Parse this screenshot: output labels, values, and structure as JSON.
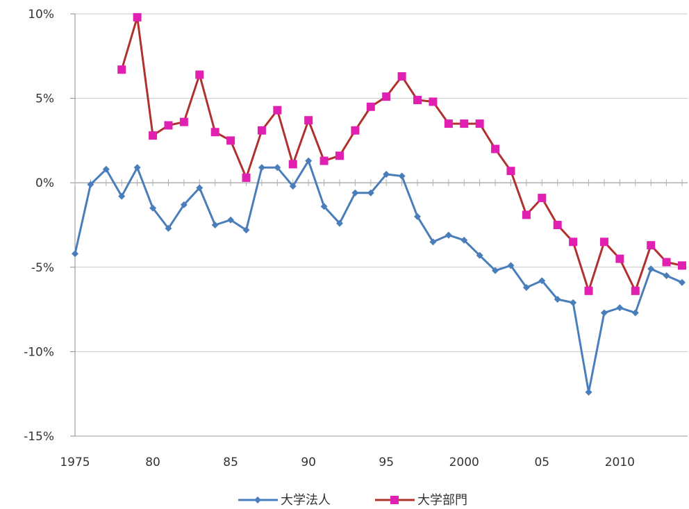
{
  "chart_data": {
    "type": "line",
    "title": "",
    "xlabel": "",
    "ylabel": "",
    "x": [
      1975,
      1976,
      1977,
      1978,
      1979,
      1980,
      1981,
      1982,
      1983,
      1984,
      1985,
      1986,
      1987,
      1988,
      1989,
      1990,
      1991,
      1992,
      1993,
      1994,
      1995,
      1996,
      1997,
      1998,
      1999,
      2000,
      2001,
      2002,
      2003,
      2004,
      2005,
      2006,
      2007,
      2008,
      2009,
      2010,
      2011,
      2012,
      2013,
      2014
    ],
    "xlim": [
      1975,
      2014
    ],
    "ylim": [
      -15,
      10
    ],
    "y_ticks": [
      {
        "value": 10,
        "label": "10%"
      },
      {
        "value": 5,
        "label": "5%"
      },
      {
        "value": 0,
        "label": "0%"
      },
      {
        "value": -5,
        "label": "-5%"
      },
      {
        "value": -10,
        "label": "-10%"
      },
      {
        "value": -15,
        "label": "-15%"
      }
    ],
    "x_ticks": [
      {
        "value": 1975,
        "label": "1975"
      },
      {
        "value": 1980,
        "label": "80"
      },
      {
        "value": 1985,
        "label": "85"
      },
      {
        "value": 1990,
        "label": "90"
      },
      {
        "value": 1995,
        "label": "95"
      },
      {
        "value": 2000,
        "label": "2000"
      },
      {
        "value": 2005,
        "label": "05"
      },
      {
        "value": 2010,
        "label": "2010"
      }
    ],
    "grid": "horizontal",
    "legend_position": "bottom",
    "series": [
      {
        "name": "大学法人",
        "color": "#4a7ebb",
        "marker": "diamond",
        "values": [
          -4.2,
          -0.1,
          0.8,
          -0.8,
          0.9,
          -1.5,
          -2.7,
          -1.3,
          -0.3,
          -2.5,
          -2.2,
          -2.8,
          0.9,
          0.9,
          -0.2,
          1.3,
          -1.4,
          -2.4,
          -0.6,
          -0.6,
          0.5,
          0.4,
          -2.0,
          -3.5,
          -3.1,
          -3.4,
          -4.3,
          -5.2,
          -4.9,
          -6.2,
          -5.8,
          -6.9,
          -7.1,
          -12.4,
          -7.7,
          -7.4,
          -7.7,
          -5.1,
          -5.5,
          -5.9
        ]
      },
      {
        "name": "大学部門",
        "color": "#b0302e",
        "marker_color": "#e020b0",
        "marker": "square",
        "values": [
          null,
          null,
          null,
          6.7,
          9.8,
          2.8,
          3.4,
          3.6,
          6.4,
          3.0,
          2.5,
          0.3,
          3.1,
          4.3,
          1.1,
          3.7,
          1.3,
          1.6,
          3.1,
          4.5,
          5.1,
          6.3,
          4.9,
          4.8,
          3.5,
          3.5,
          3.5,
          2.0,
          0.7,
          -1.9,
          -0.9,
          -2.5,
          -3.5,
          -6.4,
          -3.5,
          -4.5,
          -6.4,
          -3.7,
          -4.7,
          -4.9
        ]
      }
    ]
  }
}
